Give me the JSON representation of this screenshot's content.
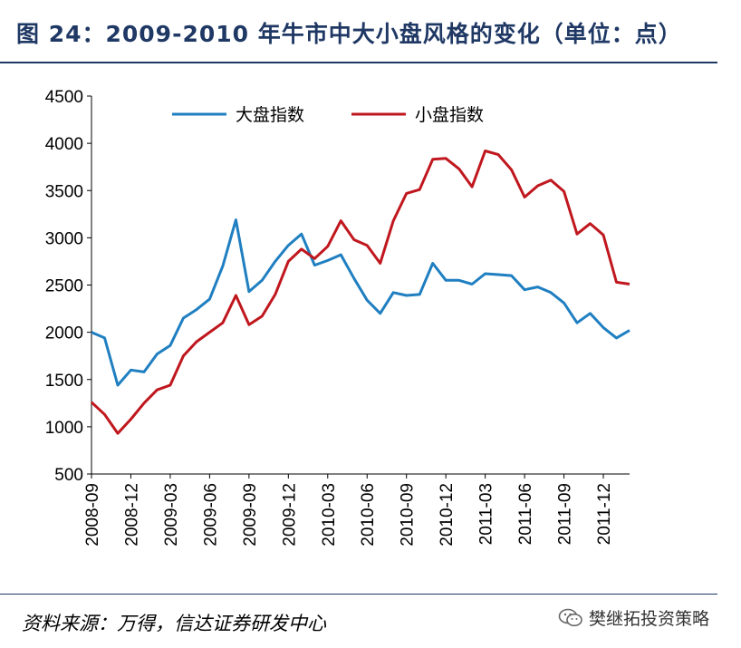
{
  "title": "图 24：2009-2010 年牛市中大小盘风格的变化（单位：点）",
  "source": "资料来源：万得，信达证券研发中心",
  "watermark": "樊继拓投资策略",
  "colors": {
    "accent": "#1f3864",
    "large": "#1f7fc1",
    "small": "#c0171e"
  },
  "chart_data": {
    "type": "line",
    "ylim": [
      500,
      4500
    ],
    "yticks": [
      "4500",
      "4000",
      "3500",
      "3000",
      "2500",
      "2000",
      "1500",
      "1000",
      "500"
    ],
    "xticklabels": [
      "2008-09",
      "2008-12",
      "2009-03",
      "2009-06",
      "2009-09",
      "2009-12",
      "2010-03",
      "2010-06",
      "2010-09",
      "2010-12",
      "2011-03",
      "2011-06",
      "2011-09",
      "2011-12"
    ],
    "legend_position": "top",
    "series": [
      {
        "name": "大盘指数",
        "color": "#1f7fc1",
        "values": [
          2000,
          1940,
          1440,
          1600,
          1580,
          1770,
          1860,
          2150,
          2240,
          2350,
          2700,
          3190,
          2430,
          2550,
          2750,
          2920,
          3040,
          2710,
          2760,
          2820,
          2570,
          2340,
          2200,
          2420,
          2390,
          2400,
          2730,
          2550,
          2550,
          2510,
          2620,
          2610,
          2600,
          2450,
          2480,
          2420,
          2310,
          2100,
          2200,
          2050,
          1940,
          2020
        ]
      },
      {
        "name": "小盘指数",
        "color": "#c0171e",
        "values": [
          1260,
          1130,
          930,
          1080,
          1250,
          1390,
          1440,
          1750,
          1900,
          2000,
          2100,
          2390,
          2080,
          2170,
          2400,
          2750,
          2880,
          2780,
          2910,
          3180,
          2980,
          2920,
          2730,
          3180,
          3470,
          3510,
          3830,
          3840,
          3730,
          3540,
          3920,
          3880,
          3720,
          3430,
          3550,
          3610,
          3490,
          3040,
          3150,
          3030,
          2530,
          2510
        ]
      }
    ]
  }
}
